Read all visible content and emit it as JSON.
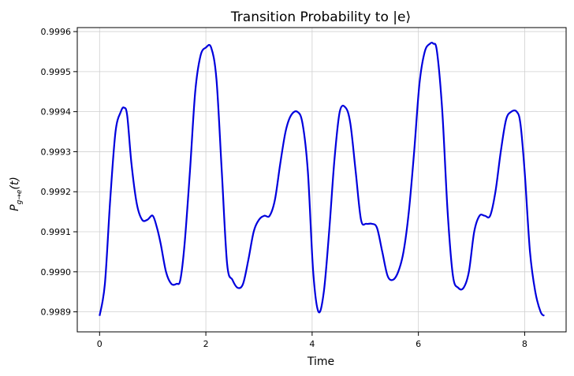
{
  "chart_data": {
    "type": "line",
    "title": "Transition Probability to |e⟩",
    "xlabel": "Time",
    "ylabel": "P_{g→e}(t)",
    "ylabel_main": "P",
    "ylabel_sub": "g→e",
    "ylabel_arg": "(t)",
    "xlim": [
      -0.42,
      8.78
    ],
    "ylim": [
      0.99885,
      0.99961
    ],
    "xticks": [
      0,
      2,
      4,
      6,
      8
    ],
    "yticks": [
      0.9989,
      0.999,
      0.9991,
      0.9992,
      0.9993,
      0.9994,
      0.9995,
      0.9996
    ],
    "ytick_labels": [
      "0.9989",
      "0.9990",
      "0.9991",
      "0.9992",
      "0.9993",
      "0.9994",
      "0.9995",
      "0.9996"
    ],
    "grid": true,
    "line_color": "#0000dd",
    "series": [
      {
        "x": [
          0.0,
          0.1,
          0.2,
          0.3,
          0.4,
          0.46,
          0.52,
          0.6,
          0.7,
          0.8,
          0.9,
          1.0,
          1.08,
          1.15,
          1.25,
          1.35,
          1.45,
          1.52,
          1.6,
          1.7,
          1.8,
          1.9,
          2.0,
          2.1,
          2.2,
          2.3,
          2.4,
          2.5,
          2.6,
          2.7,
          2.8,
          2.9,
          3.0,
          3.1,
          3.2,
          3.3,
          3.4,
          3.5,
          3.6,
          3.72,
          3.82,
          3.92,
          4.02,
          4.12,
          4.22,
          4.32,
          4.42,
          4.52,
          4.63,
          4.72,
          4.82,
          4.92,
          5.02,
          5.12,
          5.22,
          5.32,
          5.42,
          5.52,
          5.62,
          5.72,
          5.82,
          5.92,
          6.02,
          6.12,
          6.22,
          6.28,
          6.35,
          6.45,
          6.55,
          6.65,
          6.75,
          6.85,
          6.95,
          7.05,
          7.15,
          7.25,
          7.35,
          7.45,
          7.55,
          7.65,
          7.75,
          7.85,
          7.92,
          8.0,
          8.1,
          8.2,
          8.3,
          8.37
        ],
        "y": [
          0.99889,
          0.99897,
          0.99918,
          0.99935,
          0.9994,
          0.99941,
          0.99939,
          0.99927,
          0.99917,
          0.99913,
          0.99913,
          0.99914,
          0.99911,
          0.99907,
          0.999,
          0.99897,
          0.99897,
          0.99898,
          0.99907,
          0.99925,
          0.99945,
          0.99954,
          0.99956,
          0.99956,
          0.99948,
          0.99925,
          0.99902,
          0.99898,
          0.99896,
          0.99897,
          0.99903,
          0.9991,
          0.99913,
          0.99914,
          0.99914,
          0.99918,
          0.99927,
          0.99935,
          0.99939,
          0.9994,
          0.99937,
          0.99925,
          0.999,
          0.9989,
          0.99895,
          0.9991,
          0.99928,
          0.9994,
          0.99941,
          0.99937,
          0.99925,
          0.99913,
          0.99912,
          0.99912,
          0.99911,
          0.99905,
          0.99899,
          0.99898,
          0.999,
          0.99905,
          0.99915,
          0.9993,
          0.99947,
          0.99955,
          0.99957,
          0.99957,
          0.99955,
          0.9994,
          0.99915,
          0.99899,
          0.99896,
          0.99896,
          0.999,
          0.9991,
          0.99914,
          0.99914,
          0.99914,
          0.9992,
          0.9993,
          0.99938,
          0.9994,
          0.9994,
          0.99937,
          0.99925,
          0.99905,
          0.99895,
          0.9989,
          0.99889
        ]
      }
    ]
  }
}
